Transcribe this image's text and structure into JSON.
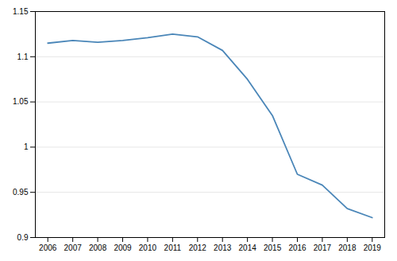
{
  "chart_data": {
    "type": "line",
    "x": [
      2006,
      2007,
      2008,
      2009,
      2010,
      2011,
      2012,
      2013,
      2014,
      2015,
      2016,
      2017,
      2018,
      2019
    ],
    "values": [
      1.115,
      1.118,
      1.116,
      1.118,
      1.121,
      1.125,
      1.122,
      1.107,
      1.075,
      1.035,
      0.97,
      0.958,
      0.932,
      0.922
    ],
    "color": "#4a86b8",
    "xlim": [
      2005.5,
      2019.5
    ],
    "xticks": [
      2006,
      2007,
      2008,
      2009,
      2010,
      2011,
      2012,
      2013,
      2014,
      2015,
      2016,
      2017,
      2018,
      2019
    ],
    "ylim": [
      0.9,
      1.15
    ],
    "yticks": [
      0.9,
      0.95,
      1,
      1.05,
      1.1,
      1.15
    ],
    "grid": true
  }
}
